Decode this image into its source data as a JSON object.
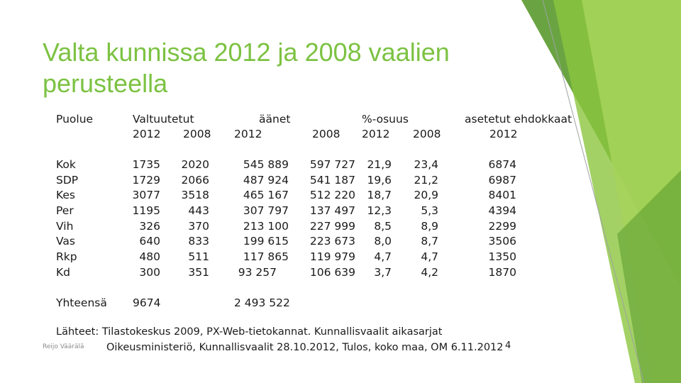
{
  "slide": {
    "title": "Valta kunnissa 2012 ja 2008 vaalien perusteella",
    "accent_color": "#7cc242"
  },
  "table": {
    "header_row1": {
      "party": "Puolue",
      "councillors": "Valtuutetut",
      "votes": "äänet",
      "percent": "%-osuus",
      "candidates": "asetetut ehdokkaat"
    },
    "header_row2": [
      "2012",
      "2008",
      "2012",
      "2008",
      "2012",
      "2008",
      "2012"
    ],
    "rows": [
      {
        "party": "Kok",
        "c2012": "1735",
        "c2008": "2020",
        "v2012": "545 889",
        "v2008": "597 727",
        "p2012": "21,9",
        "p2008": "23,4",
        "cand": "6874"
      },
      {
        "party": "SDP",
        "c2012": "1729",
        "c2008": "2066",
        "v2012": "487 924",
        "v2008": "541 187",
        "p2012": "19,6",
        "p2008": "21,2",
        "cand": "6987"
      },
      {
        "party": "Kes",
        "c2012": "3077",
        "c2008": "3518",
        "v2012": "465 167",
        "v2008": "512 220",
        "p2012": "18,7",
        "p2008": "20,9",
        "cand": "8401"
      },
      {
        "party": "Per",
        "c2012": "1195",
        "c2008": "443",
        "v2012": "307 797",
        "v2008": "137 497",
        "p2012": "12,3",
        "p2008": "5,3",
        "cand": "4394"
      },
      {
        "party": "Vih",
        "c2012": "326",
        "c2008": "370",
        "v2012": "213 100",
        "v2008": "227 999",
        "p2012": "8,5",
        "p2008": "8,9",
        "cand": "2299"
      },
      {
        "party": "Vas",
        "c2012": "640",
        "c2008": "833",
        "v2012": "199 615",
        "v2008": "223 673",
        "p2012": "8,0",
        "p2008": "8,7",
        "cand": "3506"
      },
      {
        "party": "Rkp",
        "c2012": "480",
        "c2008": "511",
        "v2012": "117 865",
        "v2008": "119 979",
        "p2012": "4,7",
        "p2008": "4,7",
        "cand": "1350"
      },
      {
        "party": "Kd",
        "c2012": "300",
        "c2008": "351",
        "v2012": "93 257",
        "v2008": "106 639",
        "p2012": "3,7",
        "p2008": "4,2",
        "cand": "1870"
      }
    ],
    "total": {
      "label": "Yhteensä",
      "c2012": "9674",
      "v2012": "2 493 522"
    }
  },
  "sources": {
    "line1": "Lähteet: Tilastokeskus 2009, PX-Web-tietokannat. Kunnallisvaalit aikasarjat",
    "line2": "Oikeusministeriö, Kunnallisvaalit 28.10.2012, Tulos, koko maa, OM 6.11.2012"
  },
  "footer": {
    "author": "Reijo Väärälä",
    "page_number": "4"
  }
}
